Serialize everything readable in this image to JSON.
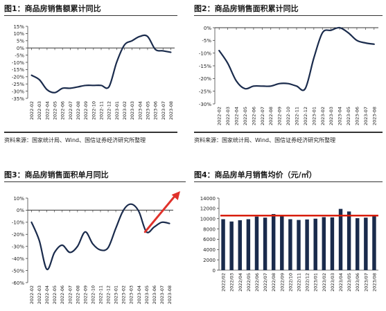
{
  "charts": [
    {
      "title": "图1：商品房销售额累计同比",
      "source": "资料来源：国家统计局、Wind、国信证券经济研究所整理"
    },
    {
      "title": "图2：商品房销售面积累计同比",
      "source": "资料来源：国家统计局、Wind、国信证券经济研究所整理"
    },
    {
      "title": "图3：商品房销售面积单月同比",
      "source": ""
    },
    {
      "title": "图4：商品房单月销售均价（元/㎡）",
      "source": ""
    }
  ],
  "chart_data": [
    {
      "type": "line",
      "title": "图1：商品房销售额累计同比",
      "x": [
        "2022-02",
        "2022-03",
        "2022-04",
        "2022-05",
        "2022-06",
        "2022-07",
        "2022-08",
        "2022-09",
        "2022-10",
        "2022-11",
        "2022-12",
        "2023-01",
        "2023-02",
        "2023-03",
        "2023-04",
        "2023-05",
        "2023-06",
        "2023-07",
        "2023-08"
      ],
      "series": [
        {
          "values": [
            -19,
            -22,
            -29,
            -31,
            -28,
            -28,
            -27,
            -26,
            -26,
            -26,
            -27,
            -10,
            2,
            5,
            8,
            8,
            -1,
            -2,
            -3
          ]
        }
      ],
      "yticks": [
        "15%",
        "10%",
        "5%",
        "0%",
        "-5%",
        "-10%",
        "-15%",
        "-20%",
        "-25%",
        "-30%",
        "-35%"
      ],
      "ylim": [
        -35,
        15
      ],
      "line_color": "#1a2b4c"
    },
    {
      "type": "line",
      "title": "图2：商品房销售面积累计同比",
      "x": [
        "2022-02",
        "2022-03",
        "2022-04",
        "2022-05",
        "2022-06",
        "2022-07",
        "2022-08",
        "2022-09",
        "2022-10",
        "2022-11",
        "2022-12",
        "2023-01",
        "2023-02",
        "2023-03",
        "2023-04",
        "2023-05",
        "2023-06",
        "2023-07",
        "2023-08"
      ],
      "series": [
        {
          "values": [
            -9,
            -14,
            -21,
            -24,
            -23,
            -23,
            -23,
            -22,
            -22,
            -23,
            -24,
            -12,
            -2,
            -1,
            0,
            -2,
            -5,
            -6,
            -6.5
          ]
        }
      ],
      "yticks": [
        "0%",
        "-5%",
        "-10%",
        "-15%",
        "-20%",
        "-25%",
        "-30%"
      ],
      "ylim": [
        -30,
        0
      ],
      "line_color": "#1a2b4c"
    },
    {
      "type": "line",
      "title": "图3：商品房销售面积单月同比",
      "x": [
        "2022-02",
        "2022-03",
        "2022-04",
        "2022-05",
        "2022-06",
        "2022-07",
        "2022-08",
        "2022-09",
        "2022-10",
        "2022-11",
        "2022-12",
        "2023-01",
        "2023-02",
        "2023-03",
        "2023-04",
        "2023-05",
        "2023-06",
        "2023-07",
        "2023-08"
      ],
      "series": [
        {
          "values": [
            -10,
            -25,
            -49,
            -35,
            -29,
            -35,
            -30,
            -18,
            -28,
            -33,
            -31,
            -15,
            0,
            5,
            -1,
            -18,
            -14,
            -10,
            -11
          ]
        }
      ],
      "yticks": [
        "10%",
        "0%",
        "-10%",
        "-20%",
        "-30%",
        "-40%",
        "-50%",
        "-60%"
      ],
      "ylim": [
        -60,
        10
      ],
      "line_color": "#1a2b4c",
      "arrow_color": "#e0322b"
    },
    {
      "type": "bar",
      "title": "图4：商品房单月销售均价（元/㎡）",
      "categories": [
        "2022/02",
        "2022/03",
        "2022/04",
        "2022/05",
        "2022/06",
        "2022/07",
        "2022/08",
        "2022/09",
        "2022/10",
        "2022/11",
        "2022/12",
        "2023/01",
        "2023/02",
        "2023/03",
        "2023/04",
        "2023/05",
        "2023/06",
        "2023/07",
        "2023/08"
      ],
      "values": [
        9900,
        9450,
        9700,
        9900,
        10400,
        10200,
        10900,
        10750,
        9900,
        9750,
        9850,
        10000,
        10300,
        10250,
        11900,
        11400,
        10100,
        10200,
        10600
      ],
      "yticks": [
        "14000",
        "12000",
        "10000",
        "8000",
        "6000",
        "4000",
        "2000",
        "0"
      ],
      "ylim": [
        0,
        14000
      ],
      "reference_value": 10600,
      "bar_color": "#1a2b4c",
      "reference_color": "#d81e06"
    }
  ]
}
